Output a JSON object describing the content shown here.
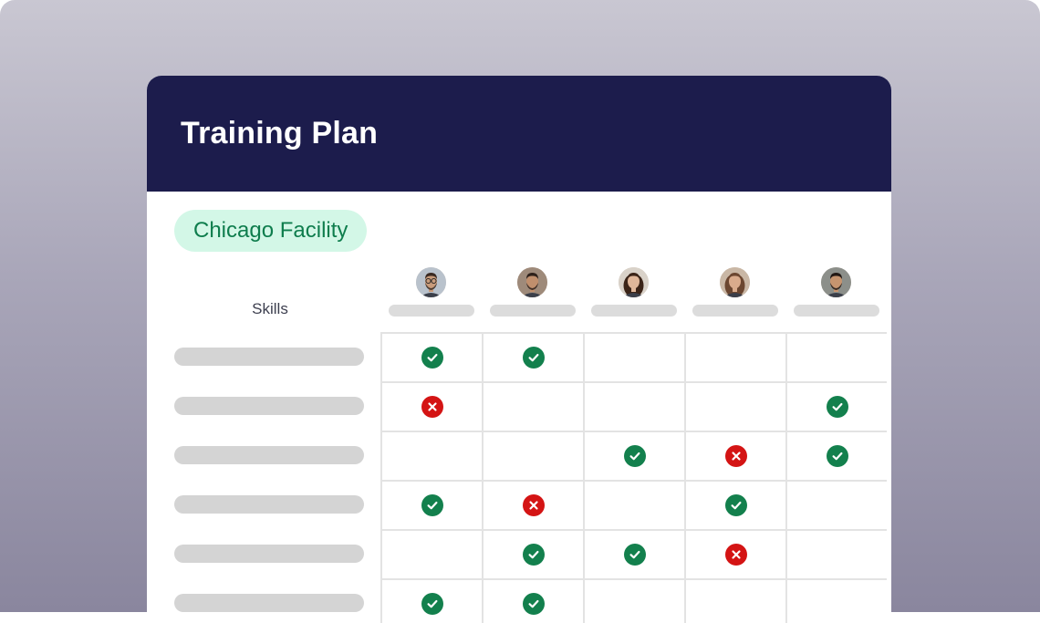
{
  "card": {
    "title": "Training Plan",
    "facility": "Chicago Facility"
  },
  "table": {
    "skills_header": "Skills",
    "people": [
      {
        "avatar": "avatar-man-glasses-icon"
      },
      {
        "avatar": "avatar-man-beard-icon"
      },
      {
        "avatar": "avatar-woman-curly-hair-icon"
      },
      {
        "avatar": "avatar-woman-long-hair-icon"
      },
      {
        "avatar": "avatar-man-dark-hair-icon"
      }
    ],
    "rows": [
      [
        "check",
        "check",
        "",
        "",
        ""
      ],
      [
        "cross",
        "",
        "",
        "",
        "check"
      ],
      [
        "",
        "",
        "check",
        "cross",
        "check"
      ],
      [
        "check",
        "cross",
        "",
        "check",
        ""
      ],
      [
        "",
        "check",
        "check",
        "cross",
        ""
      ],
      [
        "check",
        "check",
        "",
        "",
        ""
      ]
    ]
  },
  "colors": {
    "header_bg": "#1c1c4c",
    "badge_bg": "#d3f7e7",
    "badge_text": "#0e7d4d",
    "check": "#13804d",
    "cross": "#d41414"
  }
}
